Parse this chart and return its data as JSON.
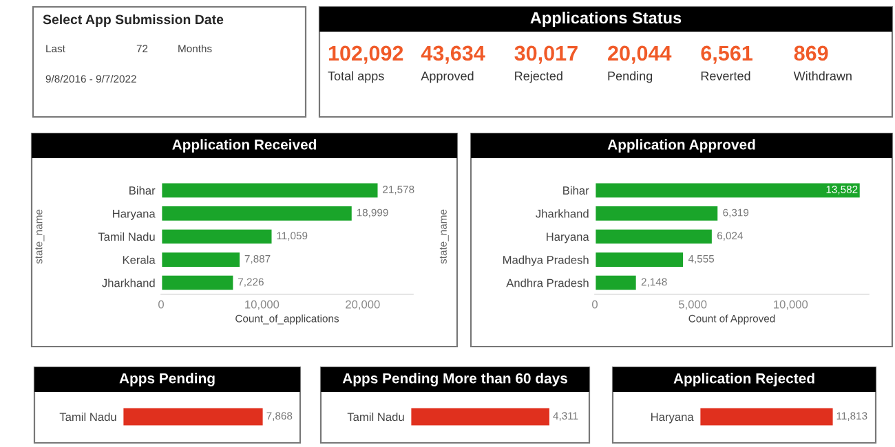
{
  "chart_data": [
    {
      "type": "other",
      "title": "Select App Submission Date",
      "annotations": [
        "Last",
        "72",
        "Months",
        "9/8/2016 - 9/7/2022"
      ]
    },
    {
      "type": "other",
      "title": "Applications Status",
      "categories": [
        "Total apps",
        "Approved",
        "Rejected",
        "Pending",
        "Reverted",
        "Withdrawn"
      ],
      "annotations": [
        "102,092",
        "43,634",
        "30,017",
        "20,044",
        "6,561",
        "869"
      ],
      "color": "#f05a28"
    },
    {
      "type": "bar",
      "orientation": "horizontal",
      "title": "Application Received",
      "categories": [
        "Bihar",
        "Haryana",
        "Tamil Nadu",
        "Kerala",
        "Jharkhand"
      ],
      "values": [
        21578,
        18999,
        11059,
        7887,
        7226
      ],
      "value_labels": [
        "21,578",
        "18,999",
        "11,059",
        "7,887",
        "7,226"
      ],
      "color": "#1aa52a",
      "xlim": [
        0,
        25000
      ],
      "xticks": [
        0,
        {
          "value": 10000,
          "label": "10,000"
        },
        {
          "value": 20000,
          "label": "20,000"
        }
      ],
      "xlabel": "Count_of_applications",
      "ylabel": "state_name"
    },
    {
      "type": "bar",
      "orientation": "horizontal",
      "title": "Application Approved",
      "categories": [
        "Bihar",
        "Jharkhand",
        "Haryana",
        "Madhya Pradesh",
        "Andhra Pradesh"
      ],
      "values": [
        13582,
        6319,
        6024,
        4555,
        2148
      ],
      "value_labels": [
        "13,582",
        "6,319",
        "6,024",
        "4,555",
        "2,148"
      ],
      "color": "#1aa52a",
      "xlim": [
        0,
        14000
      ],
      "xticks": [
        0,
        {
          "value": 5000,
          "label": "5,000"
        },
        {
          "value": 10000,
          "label": "10,000"
        }
      ],
      "xlabel": "Count of Approved",
      "ylabel": "state_name"
    },
    {
      "type": "bar",
      "orientation": "horizontal",
      "title": "Apps Pending",
      "categories": [
        "Tamil Nadu"
      ],
      "values": [
        7868
      ],
      "value_labels": [
        "7,868"
      ],
      "color": "#e0301e",
      "tick_labels": "y"
    },
    {
      "type": "bar",
      "orientation": "horizontal",
      "title": "Apps Pending More than 60 days",
      "categories": [
        "Tamil Nadu"
      ],
      "values": [
        4311
      ],
      "value_labels": [
        "4,311"
      ],
      "color": "#e0301e",
      "tick_labels": "y"
    },
    {
      "type": "bar",
      "orientation": "horizontal",
      "title": "Application Rejected",
      "categories": [
        "Haryana"
      ],
      "values": [
        11813
      ],
      "value_labels": [
        "11,813"
      ],
      "color": "#e0301e",
      "tick_labels": "y"
    }
  ]
}
